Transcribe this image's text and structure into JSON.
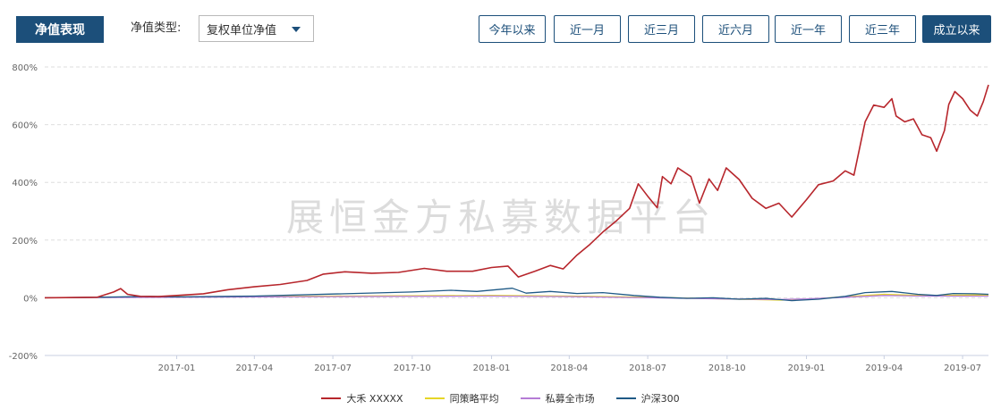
{
  "header": {
    "title": "净值表现",
    "type_label": "净值类型:",
    "type_select": {
      "value": "复权单位净值"
    },
    "ranges": [
      {
        "label": "今年以来",
        "active": false
      },
      {
        "label": "近一月",
        "active": false
      },
      {
        "label": "近三月",
        "active": false
      },
      {
        "label": "近六月",
        "active": false
      },
      {
        "label": "近一年",
        "active": false
      },
      {
        "label": "近三年",
        "active": false
      },
      {
        "label": "成立以来",
        "active": true
      }
    ]
  },
  "watermark": "展恒金方私募数据平台",
  "colors": {
    "accent": "#1c4f7a",
    "series_dahe": "#b7262c",
    "series_strategy": "#e6d627",
    "series_private": "#b57cd6",
    "series_hs300": "#1f5a86"
  },
  "chart_data": {
    "type": "line",
    "xlabel": "",
    "ylabel": "",
    "ylim": [
      -200,
      800
    ],
    "yticks": [
      "800%",
      "600%",
      "400%",
      "200%",
      "0%",
      "-200%"
    ],
    "yticks_values": [
      800,
      600,
      400,
      200,
      0,
      -200
    ],
    "xlim": [
      "2016-08",
      "2019-07"
    ],
    "xticks": [
      "2017-01",
      "2017-04",
      "2017-07",
      "2017-10",
      "2018-01",
      "2018-04",
      "2018-07",
      "2018-10",
      "2019-01",
      "2019-04",
      "2019-07"
    ],
    "xticks_dates": [
      "2017-01",
      "2017-04",
      "2017-07",
      "2017-10",
      "2018-01",
      "2018-04",
      "2018-07",
      "2018-10",
      "2019-01",
      "2019-04",
      "2019-07"
    ],
    "grid": true,
    "legend_position": "bottom",
    "series": [
      {
        "name": "大禾 XXXXX",
        "color_key": "series_dahe",
        "points": [
          [
            "2016-08-01",
            0
          ],
          [
            "2016-10-01",
            2
          ],
          [
            "2016-10-20",
            20
          ],
          [
            "2016-10-28",
            32
          ],
          [
            "2016-11-05",
            12
          ],
          [
            "2016-11-20",
            5
          ],
          [
            "2016-12-10",
            4
          ],
          [
            "2017-01-01",
            8
          ],
          [
            "2017-02-01",
            14
          ],
          [
            "2017-03-01",
            28
          ],
          [
            "2017-04-01",
            38
          ],
          [
            "2017-05-01",
            46
          ],
          [
            "2017-06-01",
            60
          ],
          [
            "2017-06-20",
            82
          ],
          [
            "2017-07-15",
            90
          ],
          [
            "2017-08-15",
            85
          ],
          [
            "2017-09-15",
            88
          ],
          [
            "2017-10-15",
            102
          ],
          [
            "2017-11-10",
            92
          ],
          [
            "2017-12-10",
            92
          ],
          [
            "2018-01-01",
            105
          ],
          [
            "2018-01-20",
            110
          ],
          [
            "2018-02-01",
            72
          ],
          [
            "2018-02-20",
            92
          ],
          [
            "2018-03-10",
            112
          ],
          [
            "2018-03-25",
            100
          ],
          [
            "2018-04-10",
            148
          ],
          [
            "2018-04-25",
            185
          ],
          [
            "2018-05-10",
            228
          ],
          [
            "2018-05-25",
            265
          ],
          [
            "2018-06-10",
            310
          ],
          [
            "2018-06-20",
            395
          ],
          [
            "2018-07-01",
            352
          ],
          [
            "2018-07-12",
            312
          ],
          [
            "2018-07-18",
            420
          ],
          [
            "2018-07-28",
            395
          ],
          [
            "2018-08-05",
            450
          ],
          [
            "2018-08-20",
            420
          ],
          [
            "2018-08-30",
            328
          ],
          [
            "2018-09-10",
            412
          ],
          [
            "2018-09-20",
            372
          ],
          [
            "2018-09-30",
            450
          ],
          [
            "2018-10-15",
            410
          ],
          [
            "2018-10-30",
            345
          ],
          [
            "2018-11-15",
            310
          ],
          [
            "2018-11-30",
            328
          ],
          [
            "2018-12-15",
            280
          ],
          [
            "2019-01-01",
            340
          ],
          [
            "2019-01-15",
            392
          ],
          [
            "2019-02-01",
            405
          ],
          [
            "2019-02-15",
            440
          ],
          [
            "2019-02-25",
            425
          ],
          [
            "2019-03-10",
            610
          ],
          [
            "2019-03-20",
            668
          ],
          [
            "2019-04-01",
            660
          ],
          [
            "2019-04-10",
            690
          ],
          [
            "2019-04-15",
            630
          ],
          [
            "2019-04-25",
            610
          ],
          [
            "2019-05-05",
            620
          ],
          [
            "2019-05-15",
            565
          ],
          [
            "2019-05-25",
            555
          ],
          [
            "2019-06-01",
            508
          ],
          [
            "2019-06-10",
            580
          ],
          [
            "2019-06-15",
            670
          ],
          [
            "2019-06-22",
            715
          ],
          [
            "2019-07-01",
            690
          ],
          [
            "2019-07-10",
            650
          ],
          [
            "2019-07-18",
            630
          ],
          [
            "2019-07-25",
            680
          ],
          [
            "2019-07-31",
            738
          ]
        ]
      },
      {
        "name": "同策略平均",
        "color_key": "series_strategy",
        "points": [
          [
            "2016-08-01",
            0
          ],
          [
            "2017-01-01",
            3
          ],
          [
            "2017-07-01",
            6
          ],
          [
            "2018-01-01",
            8
          ],
          [
            "2018-04-01",
            6
          ],
          [
            "2018-07-01",
            2
          ],
          [
            "2018-10-01",
            -4
          ],
          [
            "2018-12-01",
            -8
          ],
          [
            "2019-01-01",
            -6
          ],
          [
            "2019-02-15",
            4
          ],
          [
            "2019-04-01",
            12
          ],
          [
            "2019-05-15",
            8
          ],
          [
            "2019-07-31",
            10
          ]
        ]
      },
      {
        "name": "私募全市场",
        "color_key": "series_private",
        "points": [
          [
            "2016-08-01",
            0
          ],
          [
            "2017-01-01",
            2
          ],
          [
            "2017-07-01",
            4
          ],
          [
            "2018-01-01",
            6
          ],
          [
            "2018-04-01",
            4
          ],
          [
            "2018-07-01",
            0
          ],
          [
            "2018-10-01",
            -4
          ],
          [
            "2018-12-01",
            -6
          ],
          [
            "2019-01-01",
            -4
          ],
          [
            "2019-02-15",
            2
          ],
          [
            "2019-04-01",
            8
          ],
          [
            "2019-05-15",
            6
          ],
          [
            "2019-07-31",
            6
          ]
        ]
      },
      {
        "name": "沪深300",
        "color_key": "series_hs300",
        "points": [
          [
            "2016-08-01",
            0
          ],
          [
            "2016-10-01",
            2
          ],
          [
            "2016-12-01",
            5
          ],
          [
            "2017-01-01",
            3
          ],
          [
            "2017-04-01",
            6
          ],
          [
            "2017-07-01",
            13
          ],
          [
            "2017-10-01",
            20
          ],
          [
            "2017-11-15",
            26
          ],
          [
            "2017-12-15",
            22
          ],
          [
            "2018-01-25",
            33
          ],
          [
            "2018-02-10",
            16
          ],
          [
            "2018-03-10",
            22
          ],
          [
            "2018-04-10",
            15
          ],
          [
            "2018-05-10",
            18
          ],
          [
            "2018-06-15",
            8
          ],
          [
            "2018-07-15",
            2
          ],
          [
            "2018-08-15",
            -2
          ],
          [
            "2018-09-15",
            0
          ],
          [
            "2018-10-15",
            -5
          ],
          [
            "2018-11-15",
            -2
          ],
          [
            "2018-12-15",
            -10
          ],
          [
            "2019-01-15",
            -5
          ],
          [
            "2019-02-15",
            5
          ],
          [
            "2019-03-10",
            18
          ],
          [
            "2019-04-10",
            22
          ],
          [
            "2019-05-10",
            12
          ],
          [
            "2019-06-01",
            8
          ],
          [
            "2019-06-20",
            15
          ],
          [
            "2019-07-15",
            14
          ],
          [
            "2019-07-31",
            12
          ]
        ]
      }
    ]
  }
}
